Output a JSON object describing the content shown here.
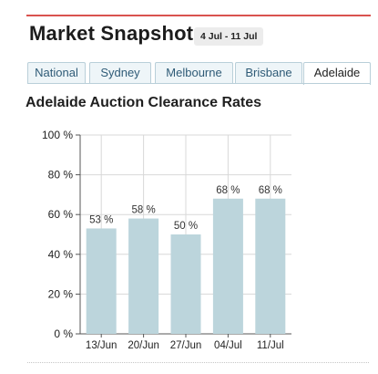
{
  "header": {
    "title": "Market Snapshot",
    "date_range": "4 Jul - 11 Jul"
  },
  "tabs": [
    {
      "label": "National",
      "active": false
    },
    {
      "label": "Sydney",
      "active": false
    },
    {
      "label": "Melbourne",
      "active": false
    },
    {
      "label": "Brisbane",
      "active": false
    },
    {
      "label": "Adelaide",
      "active": true
    }
  ],
  "colors": {
    "accent_rule": "#d9534f",
    "bar_fill": "#bcd5dc",
    "grid": "#d8d8d8",
    "tab_text": "#2f5b77"
  },
  "chart_data": {
    "type": "bar",
    "title": "Adelaide Auction Clearance Rates",
    "categories": [
      "13/Jun",
      "20/Jun",
      "27/Jun",
      "04/Jul",
      "11/Jul"
    ],
    "values": [
      53,
      58,
      50,
      68,
      68
    ],
    "value_labels": [
      "53 %",
      "58 %",
      "50 %",
      "68 %",
      "68 %"
    ],
    "ylim": [
      0,
      100
    ],
    "yticks": [
      0,
      20,
      40,
      60,
      80,
      100
    ],
    "ytick_labels": [
      "0 %",
      "20 %",
      "40 %",
      "60 %",
      "80 %",
      "100 %"
    ],
    "xlabel": "",
    "ylabel": "",
    "grid": true
  }
}
